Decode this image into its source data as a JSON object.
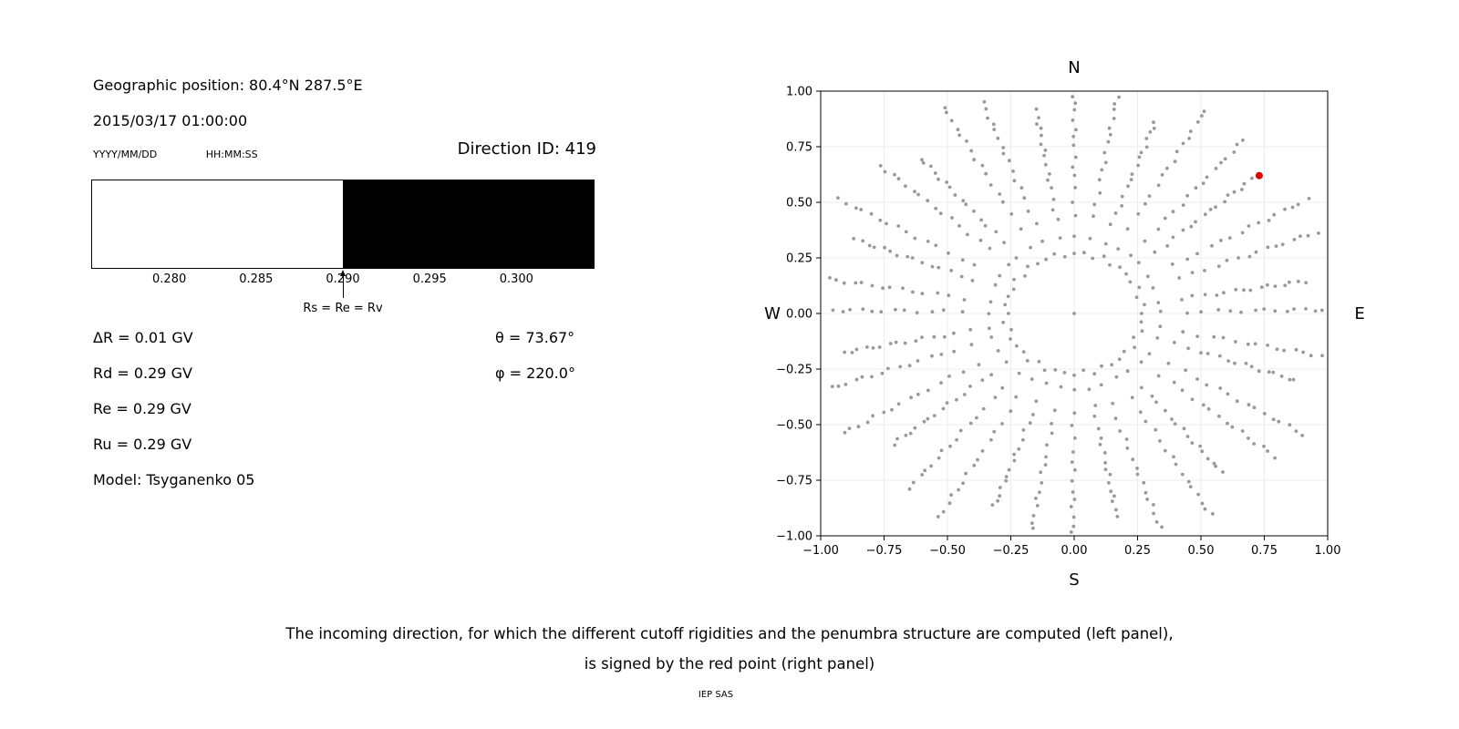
{
  "figure": {
    "caption_line1": "The incoming direction, for which the different cutoff rigidities and the penumbra structure are computed (left panel),",
    "caption_line2": "is signed by the red point (right panel)",
    "credit": "IEP SAS"
  },
  "left": {
    "geographic_position": "Geographic position: 80.4°N 287.5°E",
    "datetime": "2015/03/17 01:00:00",
    "date_format_label": "YYYY/MM/DD",
    "time_format_label": "HH:MM:SS",
    "direction_id_label": "Direction ID: 419",
    "params": [
      "ΔR = 0.01 GV",
      "Rd = 0.29 GV",
      "Re = 0.29 GV",
      "Ru = 0.29 GV",
      "Model: Tsyganenko 05"
    ],
    "theta_label": "θ = 73.67°",
    "phi_label": "φ = 220.0°"
  },
  "chart_data": [
    {
      "type": "bar",
      "xlim": [
        0.2755,
        0.3045
      ],
      "xticks": [
        0.28,
        0.285,
        0.29,
        0.295,
        0.3
      ],
      "tick_decimals": 3,
      "segments": [
        {
          "from": 0.2755,
          "to": 0.29,
          "color": "#ffffff"
        },
        {
          "from": 0.29,
          "to": 0.3045,
          "color": "#000000"
        }
      ],
      "annotation": {
        "text": "Rs = Re = Rv",
        "x": 0.29
      }
    },
    {
      "type": "scatter",
      "xlim": [
        -1,
        1
      ],
      "ylim": [
        -1,
        1
      ],
      "xticks": [
        -1.0,
        -0.75,
        -0.5,
        -0.25,
        0.0,
        0.25,
        0.5,
        0.75,
        1.0
      ],
      "yticks": [
        -1.0,
        -0.75,
        -0.5,
        -0.25,
        0.0,
        0.25,
        0.5,
        0.75,
        1.0
      ],
      "tick_decimals": 2,
      "grid": true,
      "grid_color": "#ededed",
      "compass": {
        "top": "N",
        "bottom": "S",
        "left": "W",
        "right": "E"
      },
      "dot_color": "#999999",
      "rays": {
        "count": 36,
        "r_start": 0.34,
        "r_end_base": 1.0,
        "r_end_var": 0.08,
        "dots_per_ray": 15,
        "density_exp": 0.72
      },
      "ring": {
        "radius": 0.27,
        "count": 44
      },
      "center_dot": true,
      "red_point": {
        "x": 0.73,
        "y": 0.62,
        "color": "#e00000",
        "radius": 4
      }
    }
  ]
}
